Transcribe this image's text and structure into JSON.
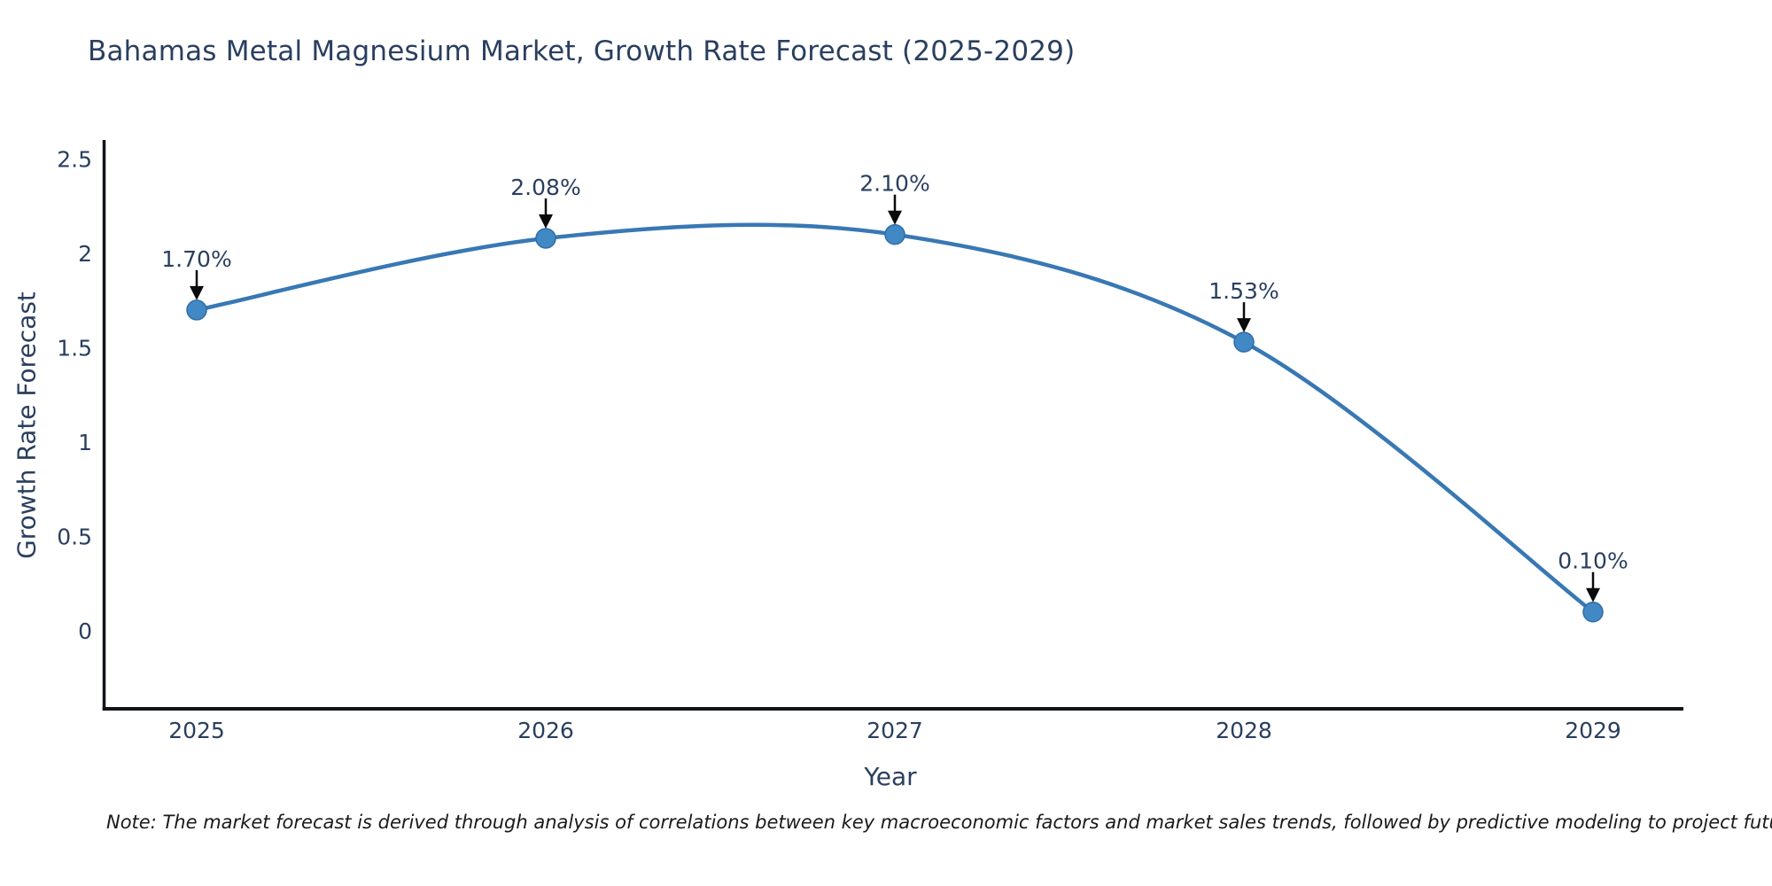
{
  "title": "Bahamas Metal Magnesium Market, Growth Rate Forecast (2025-2029)",
  "note": "Note: The market forecast is derived through analysis of correlations between key macroeconomic factors and market sales trends, followed by predictive modeling to project future sales",
  "chart_data": {
    "type": "line",
    "title": "Bahamas Metal Magnesium Market, Growth Rate Forecast (2025-2029)",
    "categories": [
      "2025",
      "2026",
      "2027",
      "2028",
      "2029"
    ],
    "values": [
      1.7,
      2.08,
      2.1,
      1.53,
      0.1
    ],
    "point_labels": [
      "1.70%",
      "2.08%",
      "2.10%",
      "1.53%",
      "0.10%"
    ],
    "xlabel": "Year",
    "ylabel": "Growth Rate Forecast",
    "ylim": [
      -0.45,
      2.6
    ],
    "yticks": [
      0,
      0.5,
      1,
      1.5,
      2,
      2.5
    ],
    "ytick_labels": [
      "0",
      "0.5",
      "1",
      "1.5",
      "2",
      "2.5"
    ],
    "grid": false,
    "legend_position": "none",
    "line_color": "#3878b4",
    "marker_color": "#4189c5",
    "marker_edge_color": "#306da6",
    "annotation_arrow_color": "#0a0a0a",
    "annotation_text_color": "#2a3f5f",
    "axis_line_color": "#111418",
    "tick_label_color": "#2a3f5f"
  }
}
